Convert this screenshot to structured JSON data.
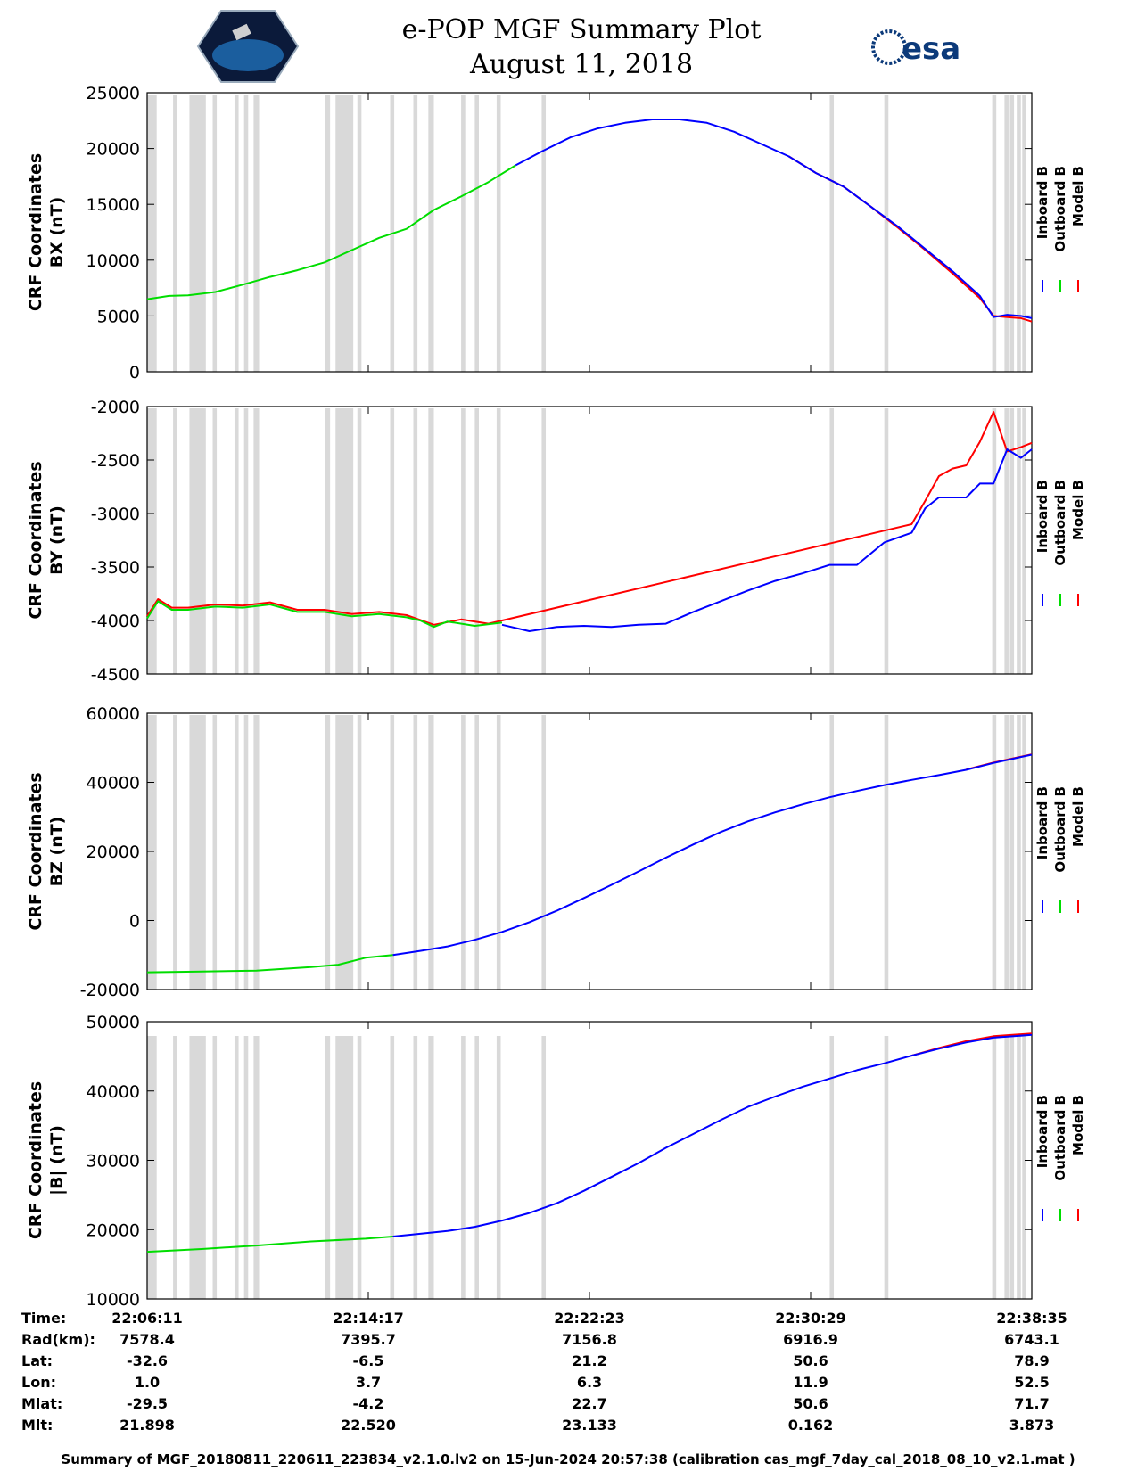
{
  "header": {
    "title_line1": "e-POP MGF Summary Plot",
    "title_line2": "August 11, 2018",
    "right_logo_text": "esa"
  },
  "colors": {
    "inboard": "#0000ff",
    "outboard": "#00dd00",
    "model": "#ff0000",
    "gap_shading": "#d9d9d9"
  },
  "legend": [
    "Inboard B",
    "Outboard B",
    "Model B"
  ],
  "shared_x_ticks": [
    "22:06:11",
    "22:14:17",
    "22:22:23",
    "22:30:29",
    "22:38:35"
  ],
  "chart_data": [
    {
      "type": "line",
      "ylabel_line1": "CRF Coordinates",
      "ylabel_line2": "BX (nT)",
      "ylim": [
        0,
        25000
      ],
      "yticks": [
        0,
        5000,
        10000,
        15000,
        20000,
        25000
      ],
      "x_range_min": [
        0,
        32.4
      ],
      "series": [
        {
          "name": "Outboard B",
          "color": "#00dd00",
          "x": [
            0,
            0.8,
            1.5,
            2.5,
            3.5,
            4.5,
            5.5,
            6.5,
            7.5,
            8.5,
            9.5,
            10.5,
            11.5,
            12.5,
            13.5
          ],
          "y": [
            6500,
            6800,
            6850,
            7150,
            7800,
            8500,
            9100,
            9800,
            10900,
            12000,
            12800,
            14500,
            15700,
            17000,
            18500
          ]
        },
        {
          "name": "Inboard B",
          "color": "#0000ff",
          "x": [
            13.5,
            14.5,
            15.5,
            16.5,
            17.5,
            18.5,
            19.5,
            20.5,
            21.5,
            22.5,
            23.5,
            24.5,
            25.5,
            26.5,
            27.5,
            28.5,
            29.5,
            30.5,
            31.0,
            31.5,
            32.0,
            32.4
          ],
          "y": [
            18500,
            19800,
            21000,
            21800,
            22300,
            22600,
            22600,
            22300,
            21500,
            20400,
            19300,
            17800,
            16600,
            14800,
            13000,
            11000,
            9000,
            6800,
            4900,
            5100,
            5000,
            4800
          ]
        },
        {
          "name": "Model B",
          "color": "#ff0000",
          "x": [
            23.5,
            24.5,
            25.5,
            26.5,
            27.5,
            28.5,
            29.5,
            30.5,
            31.0,
            31.5,
            32.0,
            32.4
          ],
          "y": [
            19300,
            17800,
            16600,
            14800,
            12900,
            10900,
            8800,
            6600,
            5000,
            4900,
            4800,
            4500
          ]
        }
      ]
    },
    {
      "type": "line",
      "ylabel_line1": "CRF Coordinates",
      "ylabel_line2": "BY (nT)",
      "ylim": [
        -4500,
        -2000
      ],
      "yticks": [
        -4500,
        -4000,
        -3500,
        -3000,
        -2500,
        -2000
      ],
      "x_range_min": [
        0,
        32.4
      ],
      "series": [
        {
          "name": "Outboard B",
          "color": "#00dd00",
          "x": [
            0,
            0.4,
            0.9,
            1.5,
            2.5,
            3.5,
            4.5,
            5.5,
            6.5,
            7.5,
            8.5,
            9.5,
            10.0,
            10.5,
            11.0,
            12.0,
            13.0
          ],
          "y": [
            -3980,
            -3820,
            -3900,
            -3900,
            -3870,
            -3880,
            -3850,
            -3920,
            -3920,
            -3960,
            -3940,
            -3970,
            -4000,
            -4060,
            -4010,
            -4050,
            -4020
          ]
        },
        {
          "name": "Inboard B",
          "color": "#0000ff",
          "x": [
            13.0,
            14.0,
            15.0,
            16.0,
            17.0,
            18.0,
            19.0,
            20.0,
            21.0,
            22.0,
            23.0,
            24.0,
            25.0,
            26.0,
            27.0,
            28.0,
            28.5,
            29.0,
            30.0,
            30.5,
            31.0,
            31.5,
            32.0,
            32.4
          ],
          "y": [
            -4040,
            -4100,
            -4060,
            -4050,
            -4060,
            -4040,
            -4030,
            -3920,
            -3820,
            -3720,
            -3630,
            -3560,
            -3480,
            -3480,
            -3270,
            -3180,
            -2950,
            -2850,
            -2850,
            -2720,
            -2720,
            -2400,
            -2480,
            -2400
          ]
        },
        {
          "name": "Model B",
          "color": "#ff0000",
          "x": [
            0,
            0.4,
            0.9,
            1.5,
            2.5,
            3.5,
            4.5,
            5.5,
            6.5,
            7.5,
            8.5,
            9.5,
            10.5,
            11.5,
            12.5,
            13.0,
            28.0,
            28.5,
            29.0,
            29.5,
            30.0,
            30.5,
            31.0,
            31.5,
            32.0,
            32.4
          ],
          "y": [
            -3960,
            -3800,
            -3880,
            -3880,
            -3850,
            -3860,
            -3830,
            -3900,
            -3900,
            -3940,
            -3920,
            -3950,
            -4040,
            -3990,
            -4030,
            -4000,
            -3100,
            -2880,
            -2650,
            -2580,
            -2550,
            -2330,
            -2050,
            -2420,
            -2380,
            -2340
          ]
        }
      ]
    },
    {
      "type": "line",
      "ylabel_line1": "CRF Coordinates",
      "ylabel_line2": "BZ (nT)",
      "ylim": [
        -20000,
        60000
      ],
      "yticks": [
        -20000,
        0,
        20000,
        40000,
        60000
      ],
      "x_range_min": [
        0,
        32.4
      ],
      "series": [
        {
          "name": "Outboard B",
          "color": "#00dd00",
          "x": [
            0,
            2.0,
            4.0,
            6.0,
            7.0,
            8.0,
            9.0
          ],
          "y": [
            -15000,
            -14800,
            -14500,
            -13500,
            -12800,
            -10800,
            -10000
          ]
        },
        {
          "name": "Inboard B",
          "color": "#0000ff",
          "x": [
            9.0,
            10.0,
            11.0,
            12.0,
            13.0,
            14.0,
            15.0,
            16.0,
            17.0,
            18.0,
            19.0,
            20.0,
            21.0,
            22.0,
            23.0,
            24.0,
            25.0,
            26.0,
            27.0,
            28.0,
            29.0,
            30.0,
            31.0,
            32.4
          ],
          "y": [
            -10000,
            -8800,
            -7500,
            -5600,
            -3300,
            -500,
            2800,
            6500,
            10300,
            14200,
            18200,
            22000,
            25600,
            28700,
            31300,
            33600,
            35700,
            37500,
            39200,
            40700,
            42100,
            43600,
            45600,
            48000
          ]
        },
        {
          "name": "Model B",
          "color": "#ff0000",
          "x": [
            30.0,
            31.0,
            32.4
          ],
          "y": [
            43700,
            45700,
            48100
          ]
        }
      ]
    },
    {
      "type": "line",
      "ylabel_line1": "CRF Coordinates",
      "ylabel_line2": "|B| (nT)",
      "ylim": [
        10000,
        50000
      ],
      "yticks": [
        10000,
        20000,
        30000,
        40000,
        50000
      ],
      "x_range_min": [
        0,
        32.4
      ],
      "series": [
        {
          "name": "Outboard B",
          "color": "#00dd00",
          "x": [
            0,
            2.0,
            4.0,
            6.0,
            8.0,
            9.0
          ],
          "y": [
            16800,
            17200,
            17700,
            18300,
            18700,
            19000
          ]
        },
        {
          "name": "Inboard B",
          "color": "#0000ff",
          "x": [
            9.0,
            10.0,
            11.0,
            12.0,
            13.0,
            14.0,
            15.0,
            16.0,
            17.0,
            18.0,
            19.0,
            20.0,
            21.0,
            22.0,
            23.0,
            24.0,
            25.0,
            26.0,
            27.0,
            28.0,
            29.0,
            30.0,
            31.0,
            32.4
          ],
          "y": [
            19000,
            19400,
            19800,
            20400,
            21300,
            22400,
            23800,
            25600,
            27600,
            29600,
            31800,
            33800,
            35800,
            37700,
            39200,
            40600,
            41800,
            43000,
            44000,
            45100,
            46100,
            47000,
            47700,
            48100
          ]
        },
        {
          "name": "Model B",
          "color": "#ff0000",
          "x": [
            28.0,
            29.0,
            30.0,
            31.0,
            32.4
          ],
          "y": [
            45100,
            46200,
            47200,
            47900,
            48300
          ]
        }
      ]
    }
  ],
  "gaps_min": [
    [
      0,
      0.35
    ],
    [
      0.95,
      1.1
    ],
    [
      1.55,
      2.15
    ],
    [
      2.4,
      2.55
    ],
    [
      3.2,
      3.35
    ],
    [
      3.55,
      3.7
    ],
    [
      3.9,
      4.1
    ],
    [
      6.5,
      6.7
    ],
    [
      6.9,
      7.55
    ],
    [
      7.7,
      7.85
    ],
    [
      8.9,
      9.05
    ],
    [
      9.75,
      9.9
    ],
    [
      10.3,
      10.5
    ],
    [
      11.5,
      11.65
    ],
    [
      12.0,
      12.15
    ],
    [
      12.8,
      12.95
    ],
    [
      14.45,
      14.6
    ],
    [
      25.0,
      25.15
    ],
    [
      27.0,
      27.15
    ],
    [
      30.95,
      31.1
    ],
    [
      31.4,
      31.55
    ],
    [
      31.6,
      31.75
    ],
    [
      31.85,
      32.0
    ],
    [
      32.05,
      32.2
    ]
  ],
  "info_table": {
    "rows": [
      {
        "label": "Time:",
        "values": [
          "22:06:11",
          "22:14:17",
          "22:22:23",
          "22:30:29",
          "22:38:35"
        ]
      },
      {
        "label": "Rad(km):",
        "values": [
          "7578.4",
          "7395.7",
          "7156.8",
          "6916.9",
          "6743.1"
        ]
      },
      {
        "label": "Lat:",
        "values": [
          "-32.6",
          "-6.5",
          "21.2",
          "50.6",
          "78.9"
        ]
      },
      {
        "label": "Lon:",
        "values": [
          "1.0",
          "3.7",
          "6.3",
          "11.9",
          "52.5"
        ]
      },
      {
        "label": "Mlat:",
        "values": [
          "-29.5",
          "-4.2",
          "22.7",
          "50.6",
          "71.7"
        ]
      },
      {
        "label": "Mlt:",
        "values": [
          "21.898",
          "22.520",
          "23.133",
          "0.162",
          "3.873"
        ]
      }
    ]
  },
  "footer": "Summary of MGF_20180811_220611_223834_v2.1.0.lv2 on 15-Jun-2024 20:57:38 (calibration cas_mgf_7day_cal_2018_08_10_v2.1.mat )"
}
